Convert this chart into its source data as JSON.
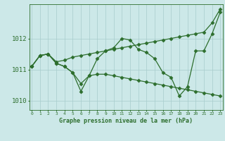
{
  "title": "Graphe pression niveau de la mer (hPa)",
  "background_color": "#cce8e8",
  "line_color": "#2d6e2d",
  "grid_color": "#a8cccc",
  "x_labels": [
    "0",
    "1",
    "2",
    "3",
    "4",
    "5",
    "6",
    "7",
    "8",
    "9",
    "10",
    "11",
    "12",
    "13",
    "14",
    "15",
    "16",
    "17",
    "18",
    "19",
    "20",
    "21",
    "22",
    "23"
  ],
  "ylim": [
    1009.7,
    1013.1
  ],
  "yticks": [
    1010,
    1011,
    1012
  ],
  "series": [
    [
      1011.1,
      1011.45,
      1011.5,
      1011.25,
      1011.3,
      1011.4,
      1011.45,
      1011.5,
      1011.55,
      1011.6,
      1011.65,
      1011.7,
      1011.75,
      1011.8,
      1011.85,
      1011.9,
      1011.95,
      1012.0,
      1012.05,
      1012.1,
      1012.15,
      1012.2,
      1012.5,
      1012.95
    ],
    [
      1011.1,
      1011.45,
      1011.5,
      1011.2,
      1011.1,
      1010.9,
      1010.3,
      1010.8,
      1011.35,
      1011.6,
      1011.7,
      1012.0,
      1011.95,
      1011.65,
      1011.55,
      1011.35,
      1010.9,
      1010.75,
      1010.15,
      1010.45,
      1011.6,
      1011.6,
      1012.15,
      1012.85
    ],
    [
      1011.1,
      1011.45,
      1011.5,
      1011.2,
      1011.1,
      1010.9,
      1010.55,
      1010.8,
      1010.85,
      1010.85,
      1010.8,
      1010.75,
      1010.7,
      1010.65,
      1010.6,
      1010.55,
      1010.5,
      1010.45,
      1010.4,
      1010.35,
      1010.3,
      1010.25,
      1010.2,
      1010.15
    ]
  ]
}
